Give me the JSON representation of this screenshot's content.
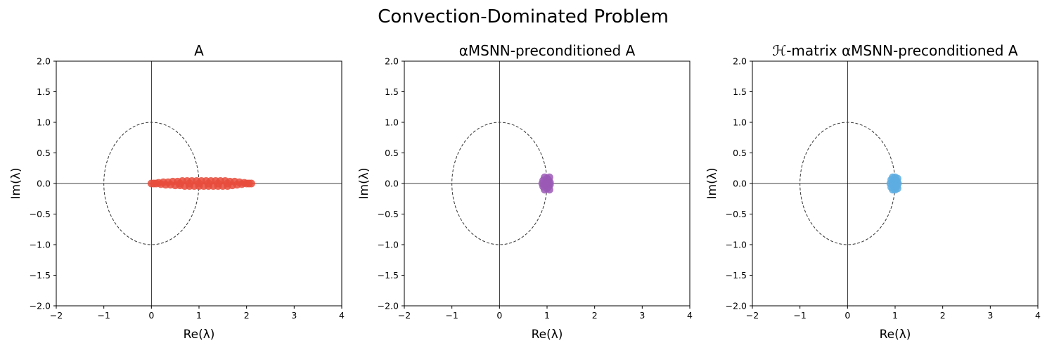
{
  "figure": {
    "suptitle": "Convection-Dominated Problem"
  },
  "chart_data": [
    {
      "type": "scatter",
      "title": "A",
      "xlabel": "Re(λ)",
      "ylabel": "Im(λ)",
      "xlim": [
        -2,
        4
      ],
      "ylim": [
        -2,
        2
      ],
      "xticks": [
        "−2",
        "−1",
        "0",
        "1",
        "2",
        "3",
        "4"
      ],
      "yticks": [
        "2.0",
        "1.5",
        "1.0",
        "0.5",
        "0.0",
        "−0.5",
        "−1.0",
        "−1.5",
        "−2.0"
      ],
      "unit_circle": true,
      "color": "#e74c3c",
      "series": [
        {
          "points": [
            [
              0.0,
              0.0
            ],
            [
              0.05,
              0.0
            ],
            [
              0.1,
              0.0
            ],
            [
              0.15,
              0.01
            ],
            [
              0.2,
              -0.01
            ],
            [
              0.25,
              0.02
            ],
            [
              0.3,
              -0.02
            ],
            [
              0.35,
              0.02
            ],
            [
              0.4,
              -0.02
            ],
            [
              0.45,
              0.03
            ],
            [
              0.5,
              -0.03
            ],
            [
              0.55,
              0.03
            ],
            [
              0.6,
              -0.03
            ],
            [
              0.65,
              0.04
            ],
            [
              0.7,
              -0.04
            ],
            [
              0.75,
              0.04
            ],
            [
              0.8,
              -0.04
            ],
            [
              0.85,
              0.04
            ],
            [
              0.9,
              -0.04
            ],
            [
              0.95,
              0.04
            ],
            [
              1.0,
              -0.04
            ],
            [
              1.05,
              0.04
            ],
            [
              1.1,
              -0.04
            ],
            [
              1.15,
              0.04
            ],
            [
              1.2,
              -0.04
            ],
            [
              1.25,
              0.04
            ],
            [
              1.3,
              -0.04
            ],
            [
              1.35,
              0.04
            ],
            [
              1.4,
              -0.04
            ],
            [
              1.45,
              0.04
            ],
            [
              1.5,
              -0.04
            ],
            [
              1.55,
              0.04
            ],
            [
              1.6,
              -0.04
            ],
            [
              1.65,
              0.03
            ],
            [
              1.7,
              -0.03
            ],
            [
              1.75,
              0.03
            ],
            [
              1.8,
              -0.02
            ],
            [
              1.85,
              0.02
            ],
            [
              1.9,
              -0.01
            ],
            [
              1.95,
              0.01
            ],
            [
              2.0,
              0.0
            ],
            [
              2.05,
              0.0
            ],
            [
              2.1,
              0.0
            ],
            [
              0.6,
              0.0
            ],
            [
              0.8,
              0.0
            ],
            [
              1.0,
              0.0
            ],
            [
              1.2,
              0.0
            ],
            [
              1.4,
              0.0
            ],
            [
              1.6,
              0.0
            ]
          ]
        }
      ]
    },
    {
      "type": "scatter",
      "title": "αMSNN-preconditioned A",
      "xlabel": "Re(λ)",
      "ylabel": "Im(λ)",
      "xlim": [
        -2,
        4
      ],
      "ylim": [
        -2,
        2
      ],
      "xticks": [
        "−2",
        "−1",
        "0",
        "1",
        "2",
        "3",
        "4"
      ],
      "yticks": [
        "2.0",
        "1.5",
        "1.0",
        "0.5",
        "0.0",
        "−0.5",
        "−1.0",
        "−1.5",
        "−2.0"
      ],
      "unit_circle": true,
      "color": "#9b59b6",
      "series": [
        {
          "points": [
            [
              0.9,
              0.0
            ],
            [
              0.92,
              0.05
            ],
            [
              0.92,
              -0.05
            ],
            [
              0.95,
              0.1
            ],
            [
              0.95,
              -0.1
            ],
            [
              1.0,
              0.08
            ],
            [
              1.0,
              -0.08
            ],
            [
              1.05,
              0.1
            ],
            [
              1.05,
              -0.1
            ],
            [
              1.06,
              0.02
            ],
            [
              1.06,
              -0.02
            ],
            [
              0.97,
              0.0
            ],
            [
              1.0,
              0.0
            ],
            [
              0.94,
              -0.02
            ],
            [
              1.03,
              0.05
            ],
            [
              1.03,
              -0.05
            ]
          ]
        }
      ]
    },
    {
      "type": "scatter",
      "title": "ℋ-matrix αMSNN-preconditioned A",
      "xlabel": "Re(λ)",
      "ylabel": "Im(λ)",
      "xlim": [
        -2,
        4
      ],
      "ylim": [
        -2,
        2
      ],
      "xticks": [
        "−2",
        "−1",
        "0",
        "1",
        "2",
        "3",
        "4"
      ],
      "yticks": [
        "2.0",
        "1.5",
        "1.0",
        "0.5",
        "0.0",
        "−0.5",
        "−1.0",
        "−1.5",
        "−2.0"
      ],
      "unit_circle": true,
      "color": "#5dade2",
      "series": [
        {
          "points": [
            [
              0.9,
              0.0
            ],
            [
              0.92,
              0.06
            ],
            [
              0.92,
              -0.06
            ],
            [
              0.95,
              0.1
            ],
            [
              0.95,
              -0.1
            ],
            [
              1.0,
              0.1
            ],
            [
              1.0,
              -0.1
            ],
            [
              1.05,
              0.08
            ],
            [
              1.05,
              -0.08
            ],
            [
              1.06,
              0.0
            ],
            [
              0.97,
              0.03
            ],
            [
              0.97,
              -0.03
            ],
            [
              1.02,
              0.0
            ],
            [
              1.04,
              0.04
            ],
            [
              1.04,
              -0.04
            ]
          ]
        }
      ]
    }
  ]
}
